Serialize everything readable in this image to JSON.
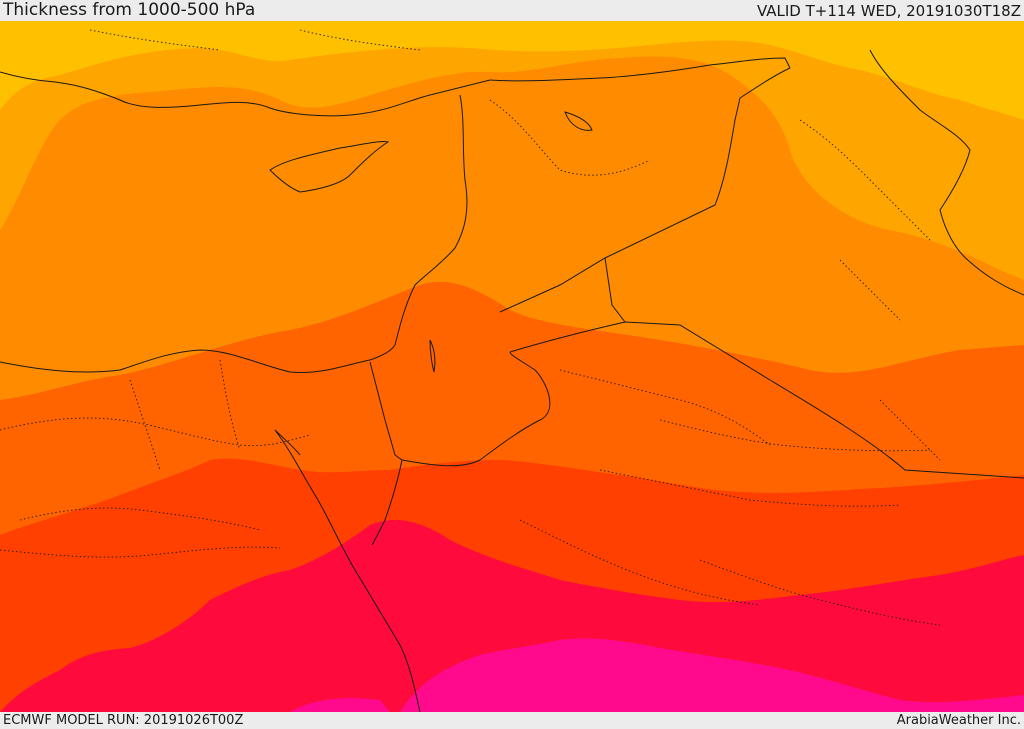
{
  "header": {
    "title": "Thickness from 1000-500 hPa",
    "valid_time": "VALID T+114 WED, 20191030T18Z"
  },
  "footer": {
    "model_run": "ECMWF MODEL RUN: 20191026T00Z",
    "credit": "ArabiaWeather Inc."
  },
  "map": {
    "field": "thickness",
    "band_colors": [
      "#ffc000",
      "#ffa500",
      "#ff8c00",
      "#ff6400",
      "#ff4000",
      "#ff0a3c",
      "#ff0a8c"
    ],
    "border_color": "#1a1a1a"
  }
}
